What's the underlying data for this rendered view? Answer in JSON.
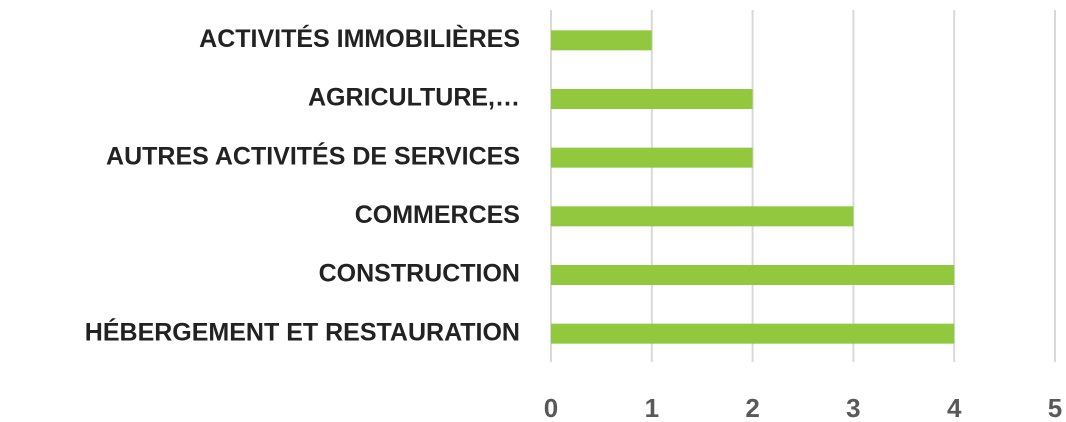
{
  "chart_data": {
    "type": "bar",
    "orientation": "horizontal",
    "categories": [
      "ACTIVITÉS IMMOBILIÈRES",
      "AGRICULTURE,…",
      "AUTRES ACTIVITÉS DE SERVICES",
      "COMMERCES",
      "CONSTRUCTION",
      "HÉBERGEMENT ET RESTAURATION"
    ],
    "values": [
      1,
      2,
      2,
      3,
      4,
      4
    ],
    "color": "#92c83e",
    "xlim": [
      0,
      5
    ],
    "xticks": [
      0,
      1,
      2,
      3,
      4,
      5
    ],
    "grid": true
  }
}
